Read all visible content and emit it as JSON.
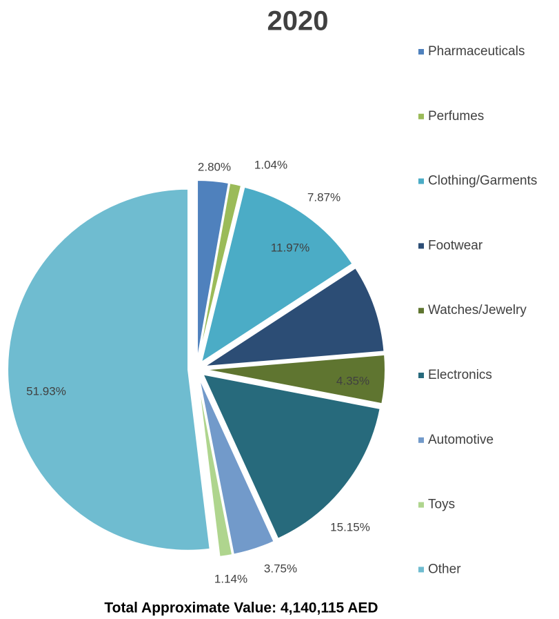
{
  "chart_data": {
    "type": "pie",
    "title": "2020",
    "annotation": "Total Approximate Value: 4,140,115 AED",
    "categories": [
      "Pharmaceuticals",
      "Perfumes",
      "Clothing/Garments",
      "Footwear",
      "Watches/Jewelry",
      "Electronics",
      "Automotive",
      "Toys",
      "Other"
    ],
    "values": [
      2.8,
      1.04,
      11.97,
      7.87,
      4.35,
      15.15,
      3.75,
      1.14,
      51.93
    ],
    "value_labels": [
      "2.80%",
      "1.04%",
      "11.97%",
      "7.87%",
      "4.35%",
      "15.15%",
      "3.75%",
      "1.14%",
      "51.93%"
    ],
    "colors": [
      "#4f81bd",
      "#9bbb59",
      "#4bacc6",
      "#2c4d75",
      "#5f7530",
      "#276a7c",
      "#729aca",
      "#afd58e",
      "#6fbcd0"
    ],
    "legend": "right"
  }
}
